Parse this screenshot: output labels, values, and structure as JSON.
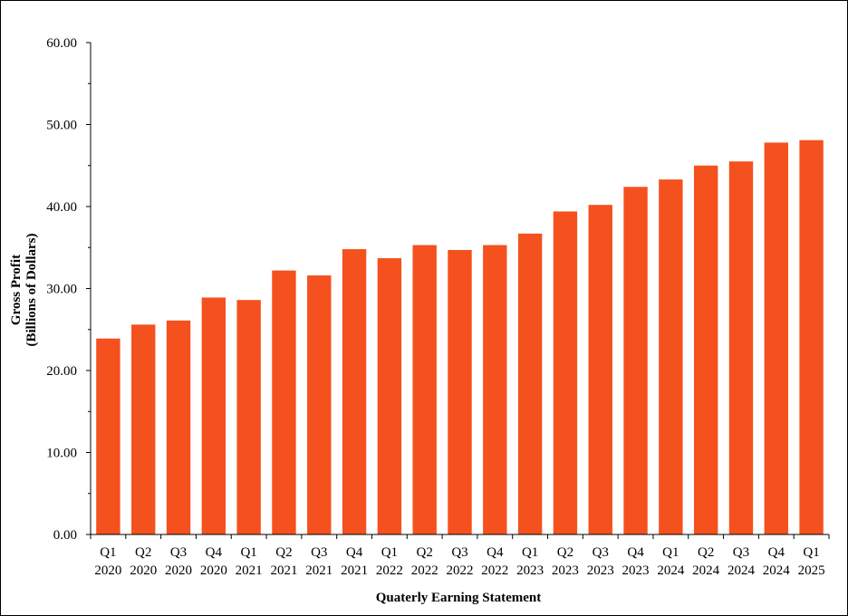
{
  "chart_data": {
    "type": "bar",
    "title": "",
    "xlabel": "Quaterly Earning Statement",
    "ylabel_line1": "Gross Profit",
    "ylabel_line2": "(Billions of Dollars)",
    "ylim": [
      0,
      60
    ],
    "yticks": [
      "0.00",
      "10.00",
      "20.00",
      "30.00",
      "40.00",
      "50.00",
      "60.00"
    ],
    "grid": false,
    "bar_color": "#f4511e",
    "categories": [
      [
        "Q1",
        "2020"
      ],
      [
        "Q2",
        "2020"
      ],
      [
        "Q3",
        "2020"
      ],
      [
        "Q4",
        "2020"
      ],
      [
        "Q1",
        "2021"
      ],
      [
        "Q2",
        "2021"
      ],
      [
        "Q3",
        "2021"
      ],
      [
        "Q4",
        "2021"
      ],
      [
        "Q1",
        "2022"
      ],
      [
        "Q2",
        "2022"
      ],
      [
        "Q3",
        "2022"
      ],
      [
        "Q4",
        "2022"
      ],
      [
        "Q1",
        "2023"
      ],
      [
        "Q2",
        "2023"
      ],
      [
        "Q3",
        "2023"
      ],
      [
        "Q4",
        "2023"
      ],
      [
        "Q1",
        "2024"
      ],
      [
        "Q2",
        "2024"
      ],
      [
        "Q3",
        "2024"
      ],
      [
        "Q4",
        "2024"
      ],
      [
        "Q1",
        "2025"
      ]
    ],
    "values": [
      23.9,
      25.6,
      26.1,
      28.9,
      28.6,
      32.2,
      31.6,
      34.8,
      33.7,
      35.3,
      34.7,
      35.3,
      36.7,
      39.4,
      40.2,
      42.4,
      43.3,
      45.0,
      45.5,
      47.8,
      48.1
    ]
  }
}
